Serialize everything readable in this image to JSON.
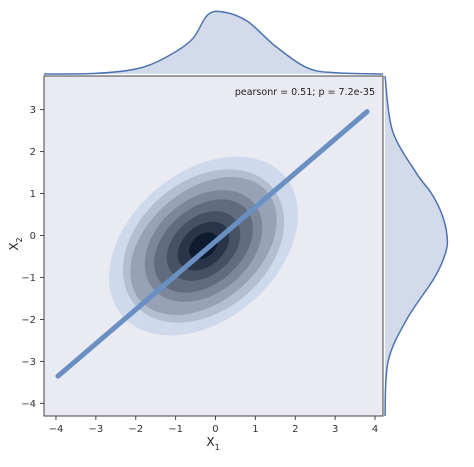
{
  "chart_data": {
    "type": "kde-joint",
    "xlabel": "X",
    "xlabel_sub": "1",
    "ylabel": "X",
    "ylabel_sub": "2",
    "xlim": [
      -4.3,
      4.2
    ],
    "ylim": [
      -4.3,
      3.8
    ],
    "xticks": [
      -4,
      -3,
      -2,
      -1,
      0,
      1,
      2,
      3,
      4
    ],
    "yticks": [
      -4,
      -3,
      -2,
      -1,
      0,
      1,
      2,
      3
    ],
    "annotation": "pearsonr = 0.51; p = 7.2e-35",
    "regression_line": {
      "x": [
        -3.95,
        3.8
      ],
      "y": [
        -3.35,
        2.95
      ]
    },
    "kde": {
      "center": [
        -0.3,
        -0.25
      ],
      "sd_x": 0.95,
      "sd_y": 0.95,
      "corr": 0.51,
      "levels": 8
    },
    "marginal_x": {
      "x": [
        -4.3,
        -3,
        -2,
        -1.3,
        -0.6,
        -0.2,
        0.2,
        0.8,
        1.5,
        2.3,
        3,
        4.2
      ],
      "density": [
        0,
        0.01,
        0.08,
        0.25,
        0.55,
        0.95,
        1.0,
        0.85,
        0.45,
        0.1,
        0.02,
        0
      ]
    },
    "marginal_y": {
      "y": [
        -4.3,
        -3,
        -2,
        -1,
        -0.4,
        0,
        0.5,
        1,
        1.5,
        2.5,
        3.8
      ],
      "density": [
        0,
        0.05,
        0.35,
        0.8,
        0.98,
        1.0,
        0.92,
        0.75,
        0.5,
        0.12,
        0
      ]
    },
    "colors": {
      "background": "#eaeaf2",
      "line": "#4c72b0",
      "marginal_fill": "#d3dbea",
      "kde_dark": "#0e1a2e",
      "kde_light": "#cfd9ec"
    }
  }
}
